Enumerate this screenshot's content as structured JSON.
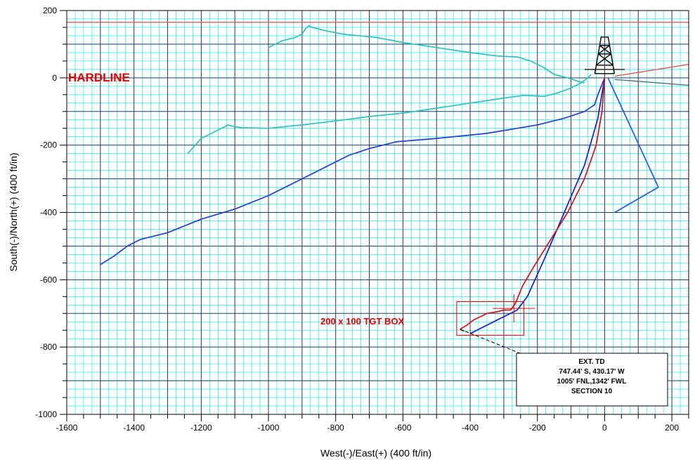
{
  "chart_data": {
    "type": "line",
    "xlabel": "West(-)/East(+) (400 ft/in)",
    "ylabel": "South(-)/North(+) (400 ft/in)",
    "xlim": [
      -1600,
      250
    ],
    "ylim": [
      -1000,
      200
    ],
    "x_ticks": [
      -1600,
      -1400,
      -1200,
      -1000,
      -800,
      -600,
      -400,
      -200,
      0,
      200
    ],
    "y_ticks": [
      200,
      0,
      -200,
      -400,
      -600,
      -800,
      -1000
    ],
    "x_tick_labels": [
      "-1600",
      "-1400",
      "-1200",
      "-1000",
      "-800",
      "-600",
      "-400",
      "-200",
      "0",
      "200"
    ],
    "y_tick_labels": [
      "200",
      "0",
      "-200",
      "-400",
      "-600",
      "-800",
      "-1000"
    ],
    "grid": true,
    "colors": {
      "minor_grid": "#00e5e5",
      "major_grid": "#1f3f5f",
      "hardline": "#e05050",
      "annotation_red": "#e00000",
      "rig": "#000000"
    },
    "series": [
      {
        "color": "#1f3fd0",
        "x": [
          0,
          -20,
          -30,
          -60,
          -120,
          -200,
          -350,
          -500,
          -620,
          -700,
          -760,
          -820,
          -900,
          -1000,
          -1100,
          -1200,
          -1300,
          -1380,
          -1420,
          -1460,
          -1500
        ],
        "y": [
          0,
          -50,
          -80,
          -100,
          -120,
          -140,
          -165,
          -180,
          -190,
          -210,
          -230,
          -260,
          -300,
          -350,
          -390,
          -420,
          -460,
          -480,
          -500,
          -530,
          -555
        ]
      },
      {
        "color": "#30c0c0",
        "x": [
          -1000,
          -960,
          -920,
          -900,
          -890,
          -880,
          -870,
          -830,
          -780,
          -680,
          -600,
          -500,
          -400,
          -320,
          -260,
          -220,
          -180,
          -150,
          -110,
          -80,
          -60
        ],
        "y": [
          90,
          110,
          120,
          130,
          145,
          155,
          150,
          140,
          130,
          120,
          105,
          90,
          75,
          65,
          62,
          50,
          30,
          10,
          0,
          -10,
          -15
        ]
      },
      {
        "color": "#30c0c0",
        "x": [
          -1240,
          -1200,
          -1150,
          -1120,
          -1100,
          -1080,
          -1000,
          -900,
          -800,
          -700,
          -600,
          -500,
          -400,
          -300,
          -240,
          -180,
          -140,
          -100,
          -70,
          -50,
          -40
        ],
        "y": [
          -225,
          -180,
          -155,
          -140,
          -145,
          -148,
          -150,
          -140,
          -128,
          -115,
          -105,
          -90,
          -75,
          -60,
          -52,
          -55,
          -45,
          -30,
          -15,
          0,
          10
        ]
      },
      {
        "color": "#1a5fd8",
        "x": [
          10,
          160,
          30
        ],
        "y": [
          0,
          -325,
          -400
        ]
      },
      {
        "color": "#1020c0",
        "x": [
          0,
          -20,
          -60,
          -120,
          -180,
          -230,
          -260,
          -320,
          -400
        ],
        "y": [
          0,
          -120,
          -260,
          -400,
          -540,
          -650,
          -690,
          -720,
          -760
        ]
      },
      {
        "color": "#d01020",
        "x": [
          0,
          -8,
          -25,
          -60,
          -110,
          -160,
          -210,
          -245,
          -265,
          -280,
          -300,
          -320,
          -350,
          -370,
          -390,
          -410,
          -430
        ],
        "y": [
          0,
          -100,
          -200,
          -300,
          -400,
          -480,
          -560,
          -620,
          -670,
          -690,
          -690,
          -695,
          -700,
          -710,
          -720,
          -735,
          -747
        ]
      }
    ],
    "reference_lines": [
      {
        "color": "#e05050",
        "x": [
          -1600,
          250
        ],
        "y": [
          165,
          165
        ]
      },
      {
        "color": "#e05050",
        "x": [
          30,
          250
        ],
        "y": [
          5,
          40
        ]
      },
      {
        "color": "#407070",
        "x": [
          30,
          250
        ],
        "y": [
          -5,
          -22
        ]
      },
      {
        "color": "#000000",
        "x": [
          -60,
          60
        ],
        "y": [
          25,
          25
        ]
      }
    ],
    "target_box": {
      "x": [
        -440,
        -240
      ],
      "y": [
        -665,
        -765
      ],
      "color": "#e00000"
    },
    "target_crosshair": {
      "x": -270,
      "y": -685,
      "color": "#d01020"
    },
    "annotations": {
      "hardline": "HARDLINE",
      "target_box": "200 x 100 TGT BOX",
      "ext_td": {
        "lines": [
          "EXT. TD",
          "747.44' S, 430.17' W",
          "1005' FNL,1342' FWL",
          "SECTION 10"
        ],
        "anchor_x": -430,
        "anchor_y": -747
      }
    }
  }
}
